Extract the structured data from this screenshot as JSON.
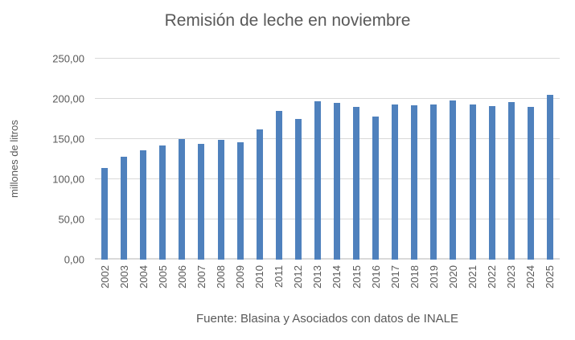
{
  "chart_data": {
    "type": "bar",
    "title": "Remisión de leche en noviembre",
    "xlabel": "",
    "ylabel": "millones de litros",
    "caption": "Fuente: Blasina y Asociados con datos de INALE",
    "categories": [
      "2002",
      "2003",
      "2004",
      "2005",
      "2006",
      "2007",
      "2008",
      "2009",
      "2010",
      "2011",
      "2012",
      "2013",
      "2014",
      "2015",
      "2016",
      "2017",
      "2018",
      "2019",
      "2020",
      "2021",
      "2022",
      "2023",
      "2024",
      "2025"
    ],
    "values": [
      114,
      128,
      136,
      142,
      150,
      144,
      149,
      146,
      162,
      185,
      175,
      197,
      195,
      190,
      178,
      193,
      192,
      193,
      198,
      193,
      191,
      196,
      190,
      205
    ],
    "ylim": [
      0,
      250
    ],
    "ytick_step": 50,
    "ytick_labels": [
      "0,00",
      "50,00",
      "100,00",
      "150,00",
      "200,00",
      "250,00"
    ],
    "grid": true,
    "legend": false,
    "colors": {
      "bar": "#4F81BD",
      "gridline": "#D9D9D9",
      "text": "#595959",
      "background": "#FFFFFF"
    }
  }
}
